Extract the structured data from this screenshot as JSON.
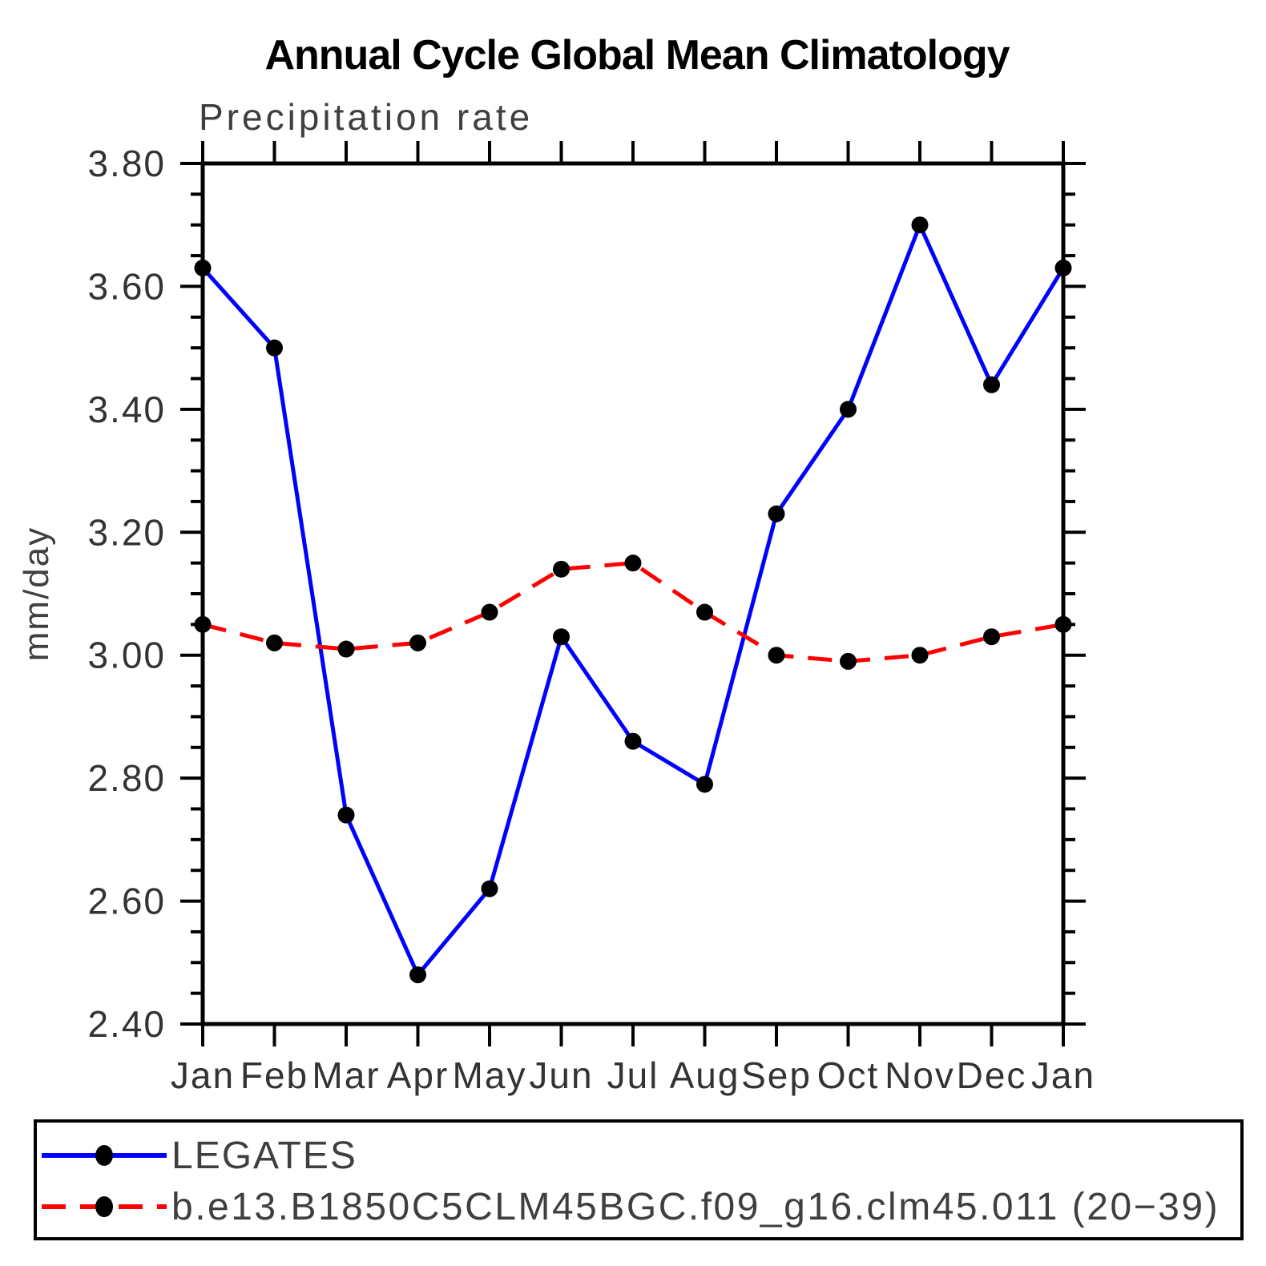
{
  "title": "Annual Cycle Global Mean Climatology",
  "chart_data": {
    "type": "line",
    "title": "Annual Cycle Global Mean Climatology",
    "subtitle": "Precipitation rate",
    "ylabel": "mm/day",
    "categories": [
      "Jan",
      "Feb",
      "Mar",
      "Apr",
      "May",
      "Jun",
      "Jul",
      "Aug",
      "Sep",
      "Oct",
      "Nov",
      "Dec",
      "Jan"
    ],
    "ylim": [
      2.4,
      3.8
    ],
    "ytick_major_step": 0.2,
    "ytick_minor_step": 0.05,
    "ytick_labels": [
      "3.80",
      "3.60",
      "3.40",
      "3.20",
      "3.00",
      "2.80",
      "2.60",
      "2.40"
    ],
    "grid": false,
    "legend_position": "bottom",
    "marker_color": "#000000",
    "axis_color": "#000000",
    "text_color": "#3f3f3f",
    "series": [
      {
        "name": "LEGATES",
        "color": "#0000ff",
        "line_style": "solid",
        "values": [
          3.63,
          3.5,
          2.74,
          2.48,
          2.62,
          3.03,
          2.86,
          2.79,
          3.23,
          3.4,
          3.7,
          3.44,
          3.63
        ]
      },
      {
        "name": "b.e13.B1850C5CLM45BGC.f09_g16.clm45.011 (20−39)",
        "color": "#ff0000",
        "line_style": "dashed",
        "values": [
          3.05,
          3.02,
          3.01,
          3.02,
          3.07,
          3.14,
          3.15,
          3.07,
          3.0,
          2.99,
          3.0,
          3.03,
          3.05
        ]
      }
    ]
  }
}
